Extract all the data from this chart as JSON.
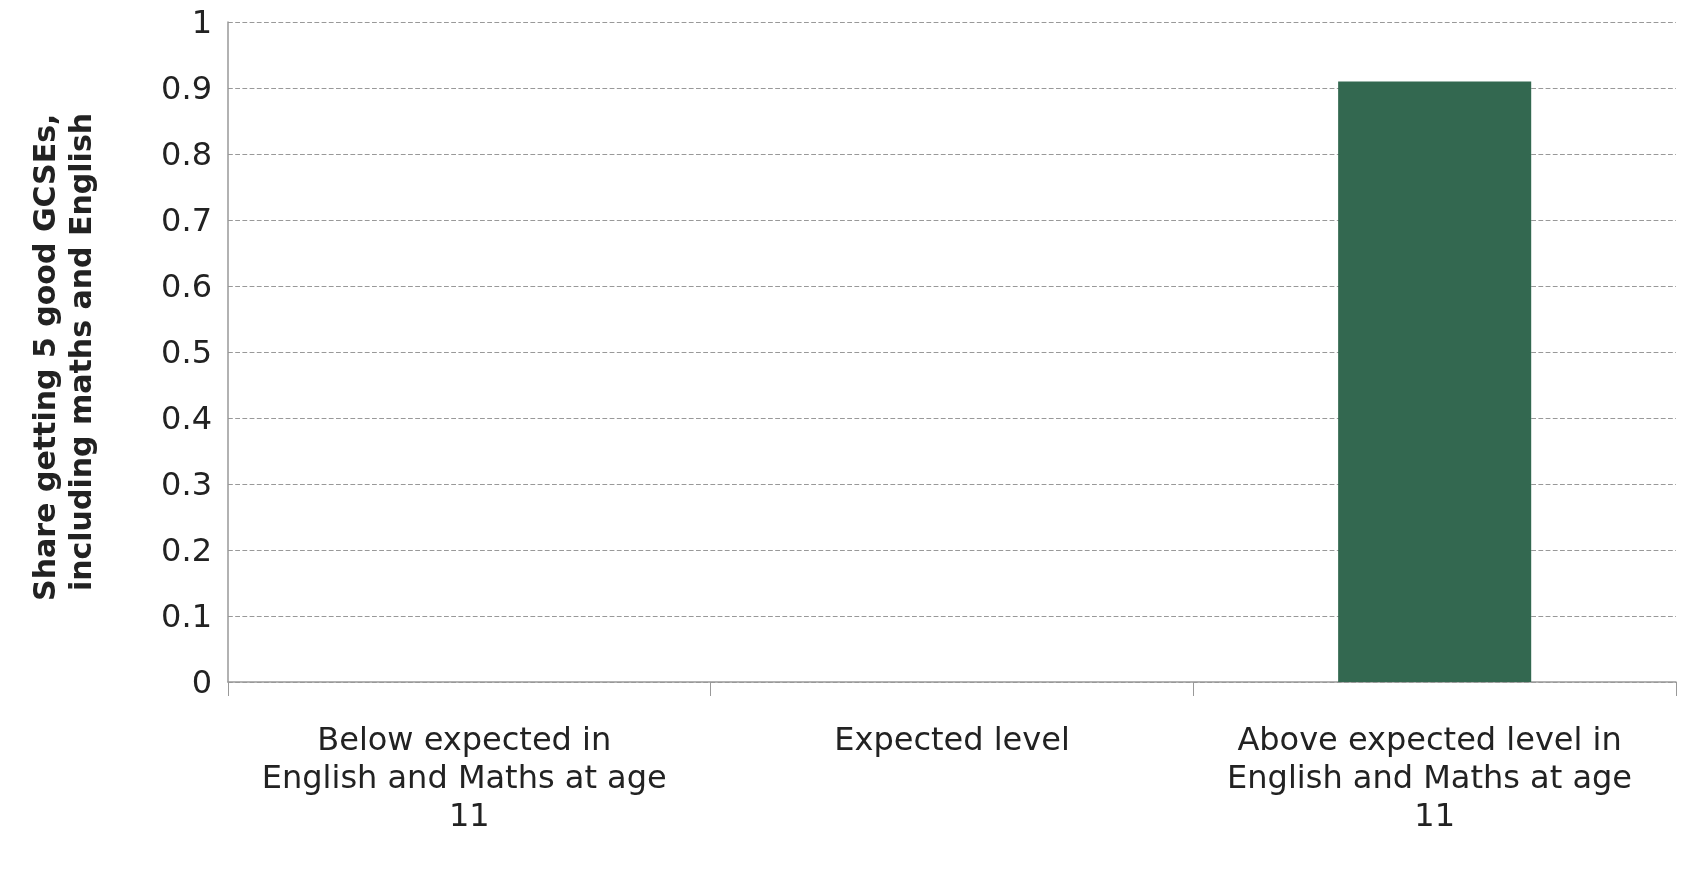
{
  "chart_data": {
    "type": "bar",
    "ylabel": "Share getting 5 good GCSEs, including maths and English",
    "categories": [
      "Below expected in English and Maths at age 11",
      "Expected level",
      "Above expected level in English and Maths at age 11"
    ],
    "values": [
      null,
      null,
      0.91
    ],
    "color": "#336850",
    "ylim": [
      0,
      1
    ],
    "yticks": [
      0,
      0.1,
      0.2,
      0.3,
      0.4,
      0.5,
      0.6,
      0.7,
      0.8,
      0.9,
      1
    ],
    "grid": "y"
  }
}
